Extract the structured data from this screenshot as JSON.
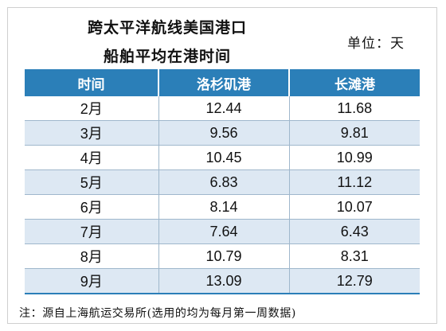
{
  "title_line1": "跨太平洋航线美国港口",
  "title_line2": "船舶平均在港时间",
  "unit": "单位：天",
  "table": {
    "headers": [
      "时间",
      "洛杉矶港",
      "长滩港"
    ],
    "rows": [
      [
        "2月",
        "12.44",
        "11.68"
      ],
      [
        "3月",
        "9.56",
        "9.81"
      ],
      [
        "4月",
        "10.45",
        "10.99"
      ],
      [
        "5月",
        "6.83",
        "11.12"
      ],
      [
        "6月",
        "8.14",
        "10.07"
      ],
      [
        "7月",
        "7.64",
        "6.43"
      ],
      [
        "8月",
        "10.79",
        "8.31"
      ],
      [
        "9月",
        "13.09",
        "12.79"
      ]
    ]
  },
  "note": "注：源自上海航运交易所(选用的均为每月第一周数据)",
  "colors": {
    "header_bg": "#2b7fb8",
    "alt_row_bg": "#dde8f3"
  }
}
